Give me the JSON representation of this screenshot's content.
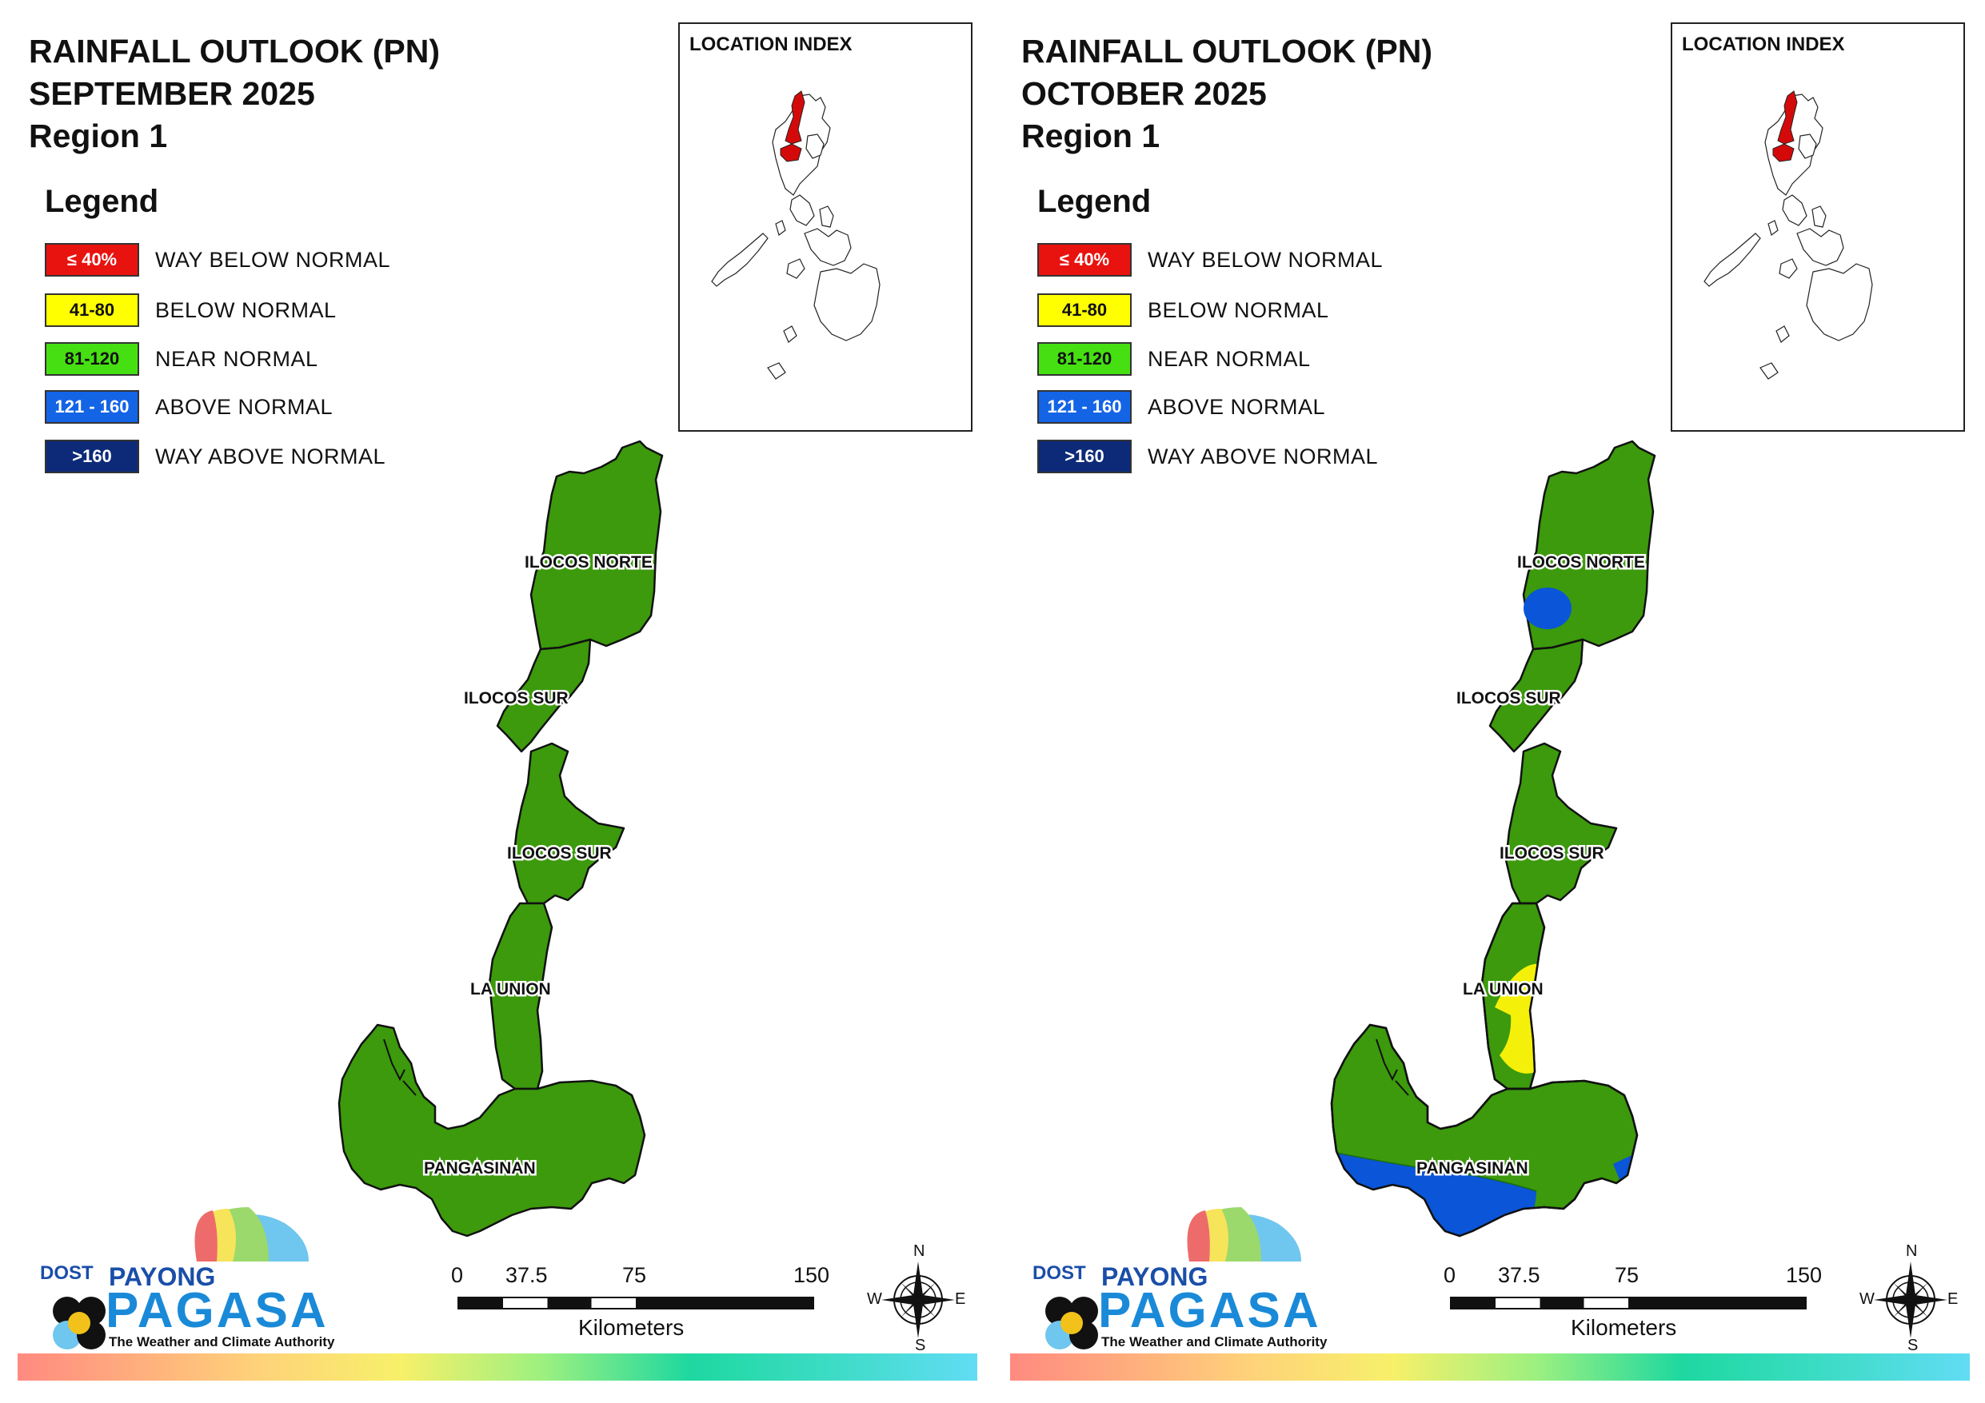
{
  "panels": [
    {
      "title": [
        "RAINFALL OUTLOOK (PN)",
        "SEPTEMBER 2025",
        "Region 1"
      ],
      "inset_title": "LOCATION INDEX",
      "legend_title": "Legend",
      "provinces": [
        "ILOCOS NORTE",
        "ILOCOS SUR",
        "ILOCOS SUR",
        "LA UNION",
        "PANGASINAN"
      ],
      "anomalies": []
    },
    {
      "title": [
        "RAINFALL OUTLOOK (PN)",
        "OCTOBER 2025",
        "Region 1"
      ],
      "inset_title": "LOCATION INDEX",
      "legend_title": "Legend",
      "provinces": [
        "ILOCOS NORTE",
        "ILOCOS SUR",
        "ILOCOS SUR",
        "LA UNION",
        "PANGASINAN"
      ],
      "anomalies": [
        "above-normal",
        "below-normal",
        "above-normal"
      ]
    }
  ],
  "legend": [
    {
      "range": "≤ 40%",
      "label": "WAY BELOW NORMAL",
      "color": "#e8120f",
      "text_color": "#ffffff"
    },
    {
      "range": "41-80",
      "label": "BELOW NORMAL",
      "color": "#ffff00",
      "text_color": "#111111"
    },
    {
      "range": "81-120",
      "label": "NEAR NORMAL",
      "color": "#46e012",
      "text_color": "#111111"
    },
    {
      "range": "121 - 160",
      "label": "ABOVE NORMAL",
      "color": "#1464e6",
      "text_color": "#ffffff"
    },
    {
      "range": ">160",
      "label": "WAY ABOVE NORMAL",
      "color": "#0c2a78",
      "text_color": "#ffffff"
    }
  ],
  "scale": {
    "ticks": [
      "0",
      "37.5",
      "75",
      "150"
    ],
    "unit": "Kilometers"
  },
  "compass": {
    "n": "N",
    "s": "S",
    "e": "E",
    "w": "W"
  },
  "logo": {
    "dost": "DOST",
    "payong": "PAYONG",
    "pagasa": "PAGASA",
    "tagline": "The Weather and Climate Authority"
  },
  "colors": {
    "region_fill": "#3c9a0c",
    "above": "#0a55d8",
    "below": "#f5f00a",
    "highlight": "#d40a0a"
  }
}
